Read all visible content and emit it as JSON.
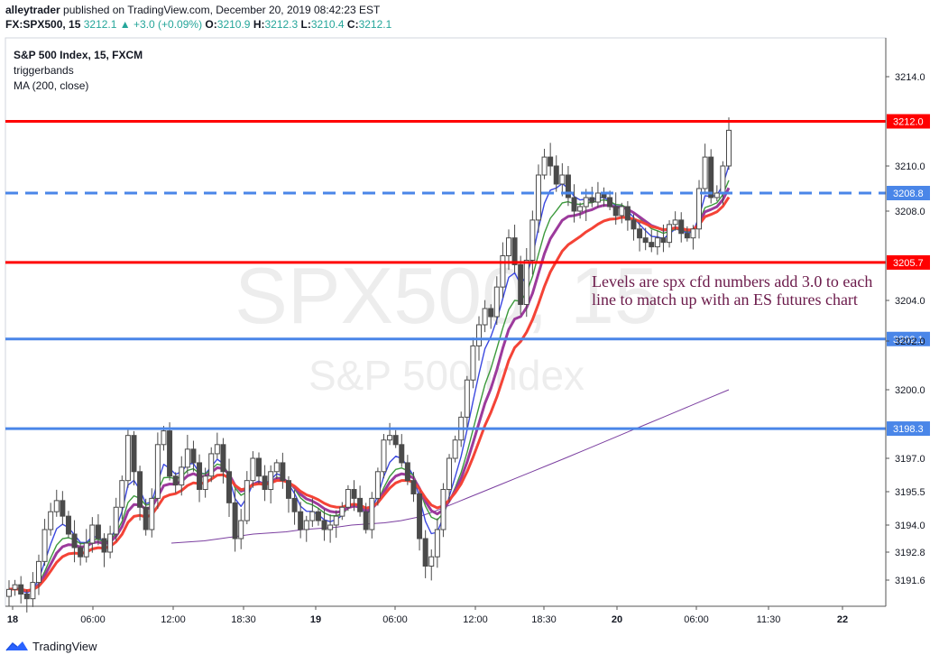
{
  "header": {
    "publisher": "alleytrader",
    "published_text": "published on TradingView.com, December 20, 2019 08:42:23 EST",
    "symbol": "FX:SPX500, 15",
    "last": "3212.1",
    "change": "+3.0 (+0.09%)",
    "o_label": "O:",
    "o_value": "3210.9",
    "h_label": "H:",
    "h_value": "3212.3",
    "l_label": "L:",
    "l_value": "3210.4",
    "c_label": "C:",
    "c_value": "3212.1"
  },
  "legend": {
    "title": "S&P 500 Index, 15, FXCM",
    "indicator1": "triggerbands",
    "indicator2": "MA (200, close)"
  },
  "watermark": {
    "symbol": "SPX500, 15",
    "name": "S&P 500 Index"
  },
  "annotation": "Levels are spx cfd numbers add 3.0 to each line to match up with an ES futures chart",
  "footer": {
    "brand": "TradingView"
  },
  "colors": {
    "up": "#26a69a",
    "down": "#ef5350",
    "candle": "#4a4a4a",
    "resistance": "#ff0000",
    "support": "#4a86e8",
    "band_blue": "#3b48e0",
    "band_green": "#3c9a3c",
    "band_purple": "#9c3a9c",
    "band_red": "#f44336",
    "ma200": "#7b3fa0"
  },
  "chart_data": {
    "type": "candlestick",
    "title": "S&P 500 Index, 15, FXCM",
    "x_ticks": [
      "18",
      "06:00",
      "12:00",
      "18:30",
      "19",
      "06:00",
      "12:00",
      "18:30",
      "20",
      "06:00",
      "11:30",
      "22"
    ],
    "y_ticks": [
      "3214.0",
      "3210.0",
      "3208.0",
      "3204.0",
      "3202.0",
      "3200.0",
      "3197.0",
      "3195.5",
      "3194.0",
      "3192.8",
      "3191.6"
    ],
    "ylim": [
      3190.6,
      3216.0
    ],
    "levels": [
      {
        "label": "3212.0",
        "value": 3212.0,
        "style": "solid",
        "color": "#ff0000"
      },
      {
        "label": "3208.8",
        "value": 3208.8,
        "style": "dashed",
        "color": "#4a86e8"
      },
      {
        "label": "3205.7",
        "value": 3205.7,
        "style": "solid",
        "color": "#ff0000"
      },
      {
        "label": "3202.1",
        "value": 3202.1,
        "style": "solid",
        "color": "#4a86e8"
      },
      {
        "label": "3198.3",
        "value": 3198.3,
        "style": "solid",
        "color": "#4a86e8"
      }
    ],
    "close": [
      3191.2,
      3191.4,
      3191.0,
      3190.8,
      3191.5,
      3192.4,
      3193.8,
      3194.6,
      3195.1,
      3194.4,
      3193.6,
      3193.0,
      3192.6,
      3193.2,
      3194.0,
      3193.4,
      3192.8,
      3193.6,
      3194.8,
      3196.0,
      3198.0,
      3196.4,
      3194.8,
      3193.8,
      3195.2,
      3197.6,
      3198.2,
      3196.2,
      3195.8,
      3196.6,
      3197.4,
      3196.8,
      3195.6,
      3196.2,
      3197.2,
      3197.6,
      3196.4,
      3195.0,
      3193.4,
      3194.2,
      3196.0,
      3197.0,
      3196.2,
      3195.6,
      3196.4,
      3196.8,
      3196.0,
      3195.2,
      3194.6,
      3193.8,
      3194.2,
      3194.6,
      3194.2,
      3193.8,
      3194.0,
      3194.4,
      3194.8,
      3195.6,
      3195.2,
      3194.6,
      3193.8,
      3195.2,
      3196.4,
      3197.8,
      3198.0,
      3197.6,
      3196.8,
      3196.0,
      3195.4,
      3193.4,
      3192.2,
      3192.6,
      3193.8,
      3195.6,
      3197.0,
      3197.8,
      3198.8,
      3200.4,
      3201.8,
      3202.8,
      3203.6,
      3203.2,
      3204.6,
      3206.0,
      3206.8,
      3205.6,
      3203.8,
      3205.8,
      3207.6,
      3209.6,
      3210.4,
      3210.0,
      3209.2,
      3209.6,
      3208.6,
      3208.0,
      3208.2,
      3208.6,
      3208.4,
      3208.8,
      3208.6,
      3208.2,
      3207.8,
      3208.2,
      3207.6,
      3207.2,
      3206.8,
      3206.6,
      3206.4,
      3206.8,
      3206.6,
      3207.4,
      3207.6,
      3207.0,
      3206.8,
      3207.2,
      3209.0,
      3210.4,
      3208.6,
      3208.8,
      3210.0,
      3211.6
    ],
    "ma200": [
      3193.2,
      3193.25,
      3193.3,
      3193.4,
      3193.5,
      3193.6,
      3193.65,
      3193.7,
      3193.8,
      3193.85,
      3193.9,
      3194.0,
      3194.05,
      3194.1,
      3194.2,
      3194.35,
      3194.6,
      3194.9,
      3195.2,
      3195.5,
      3195.8,
      3196.1,
      3196.4,
      3196.7,
      3197.0,
      3197.3,
      3197.6,
      3197.9,
      3198.2,
      3198.5,
      3198.8,
      3199.1,
      3199.4,
      3199.7,
      3200.0
    ]
  }
}
